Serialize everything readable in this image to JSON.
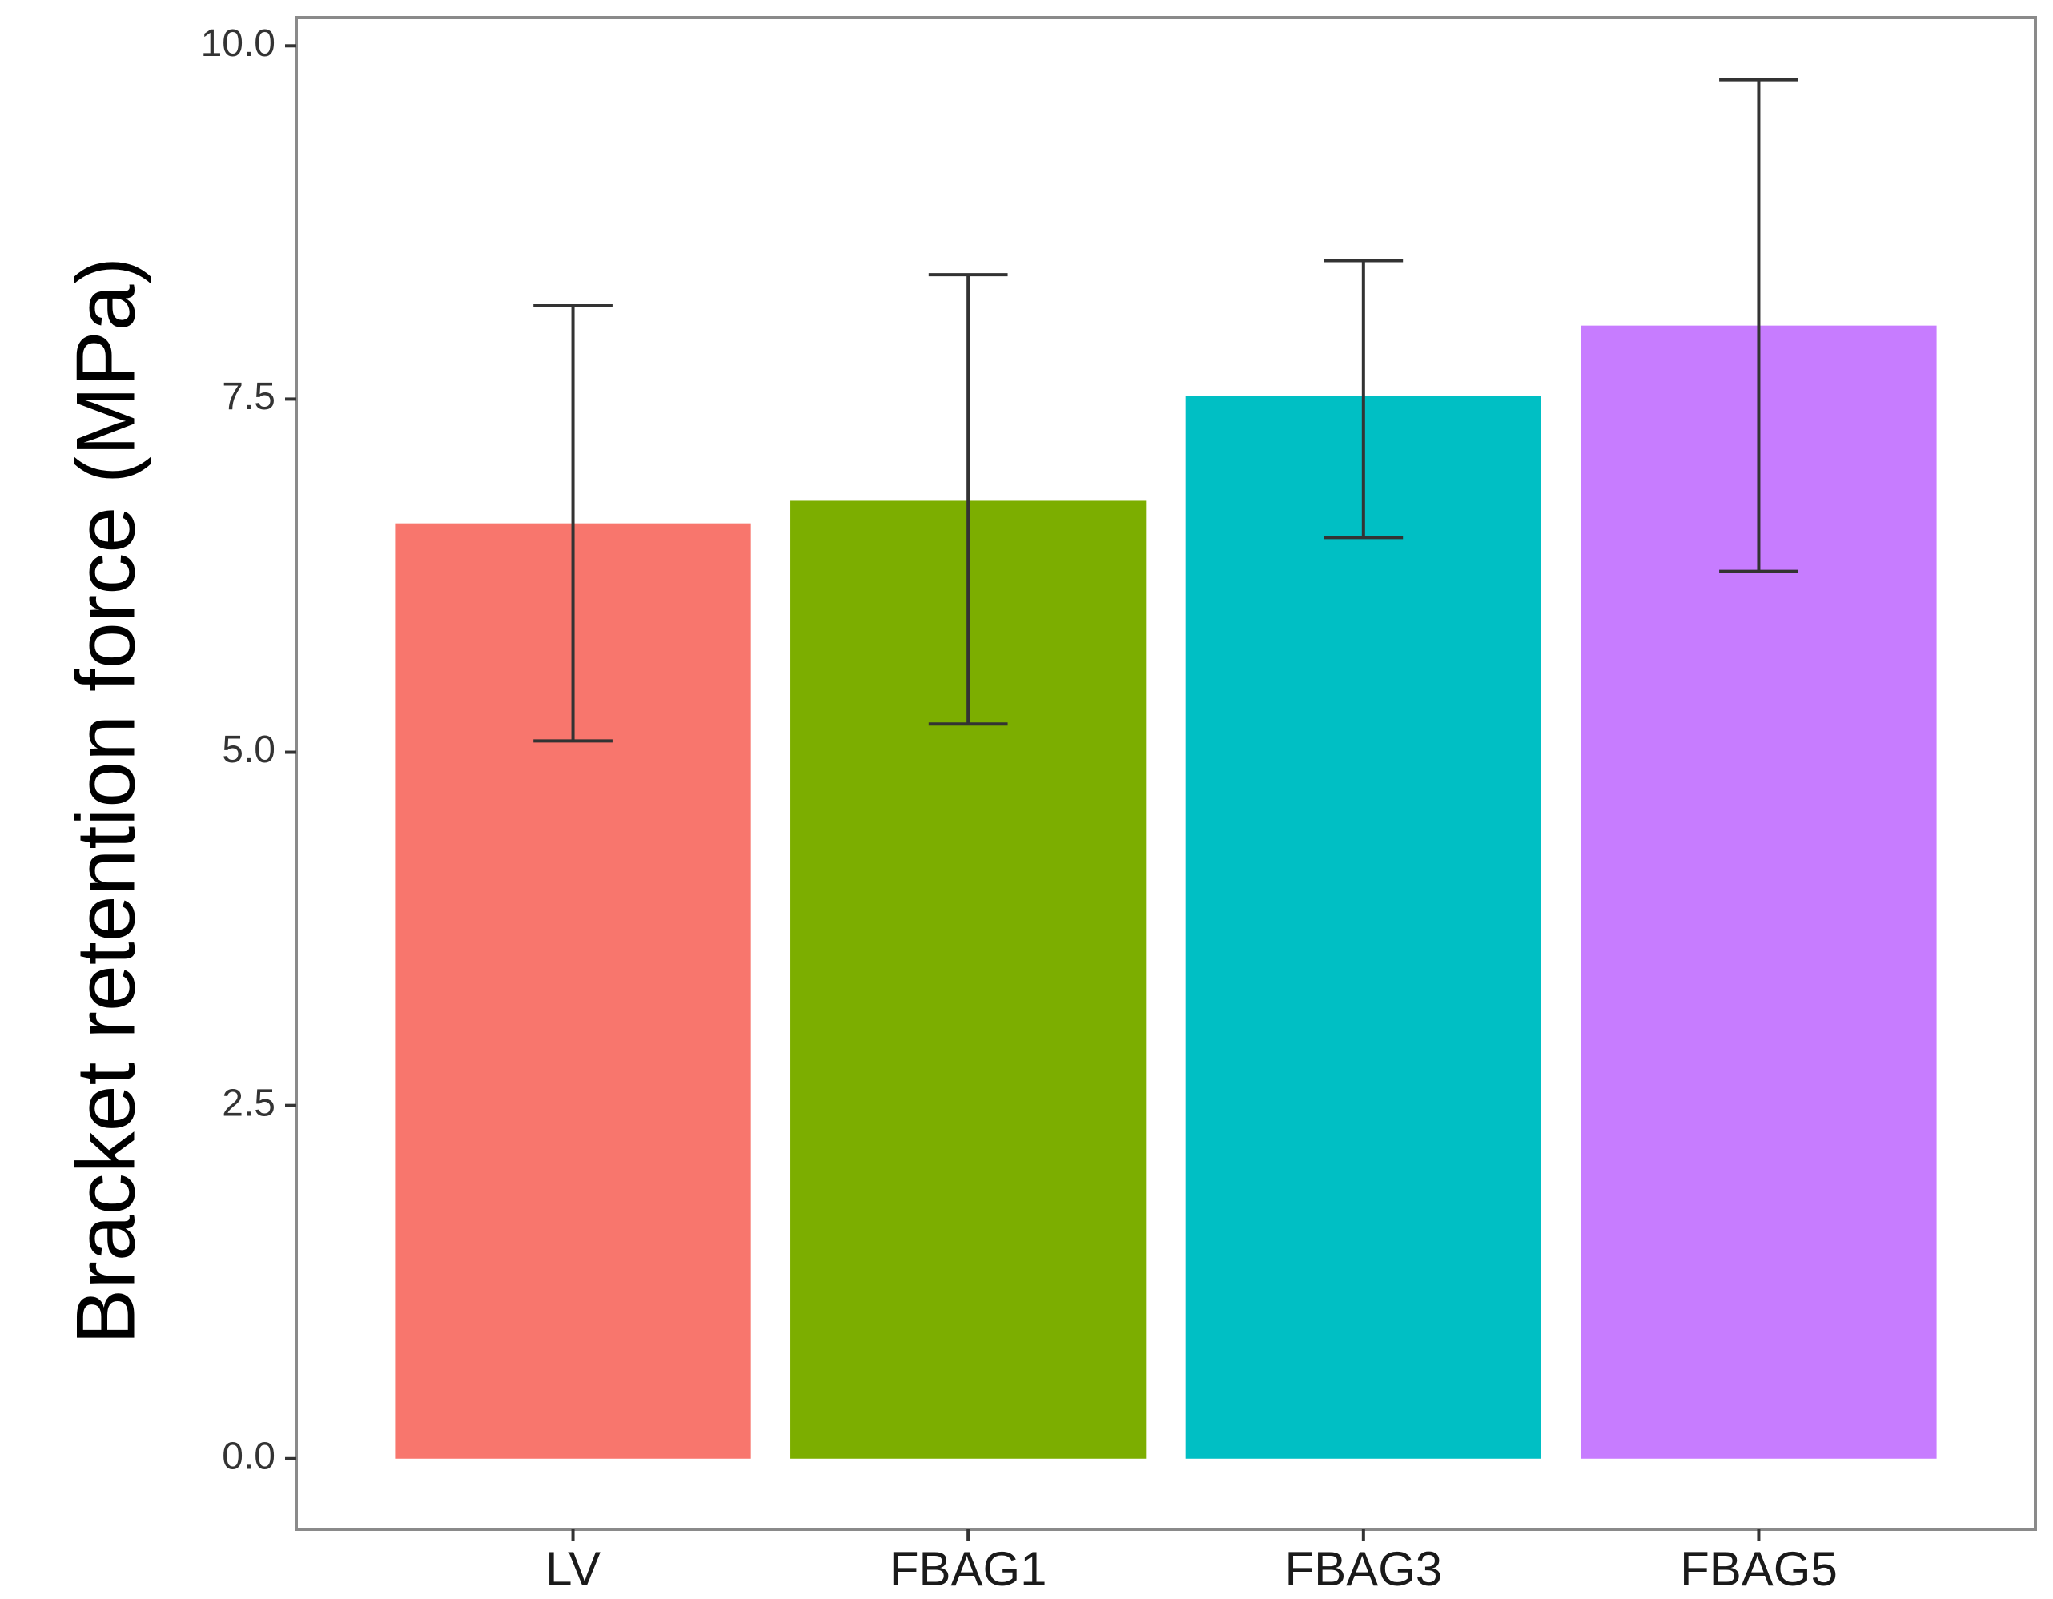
{
  "chart_data": {
    "type": "bar",
    "title": "",
    "xlabel": "",
    "ylabel": "Bracket retention force (MPa)",
    "categories": [
      "LV",
      "FBAG1",
      "FBAG3",
      "FBAG5"
    ],
    "values": [
      6.62,
      6.78,
      7.52,
      8.02
    ],
    "error_low": [
      5.08,
      5.2,
      6.52,
      6.28
    ],
    "error_high": [
      8.16,
      8.38,
      8.48,
      9.76
    ],
    "colors": [
      "#F8766D",
      "#7CAE00",
      "#00BFC4",
      "#C77CFF"
    ],
    "ylim": [
      -0.5,
      10.2
    ],
    "yticks": [
      0.0,
      2.5,
      5.0,
      7.5,
      10.0
    ],
    "ytick_labels": [
      "0.0",
      "2.5",
      "5.0",
      "7.5",
      "10.0"
    ],
    "grid": false
  }
}
